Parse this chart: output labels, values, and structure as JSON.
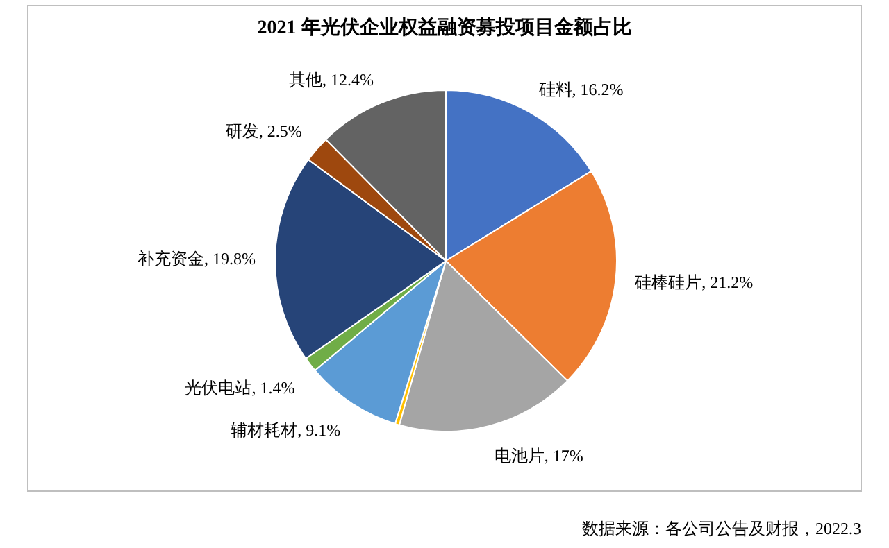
{
  "chart_data": {
    "type": "pie",
    "title": "2021 年光伏企业权益融资募投项目金额占比",
    "categories": [
      "硅料",
      "硅棒硅片",
      "电池片",
      null,
      "辅材耗材",
      "光伏电站",
      "补充资金",
      "研发",
      "其他"
    ],
    "values": [
      16.2,
      21.2,
      17,
      0.4,
      9.1,
      1.4,
      19.8,
      2.5,
      12.4
    ],
    "colors": [
      "#4472c4",
      "#ed7d31",
      "#a5a5a5",
      "#ffc000",
      "#5b9bd5",
      "#70ad47",
      "#264478",
      "#9e480e",
      "#636363"
    ],
    "value_labels": [
      ", 16.2%",
      ", 21.2%",
      ", 17%",
      null,
      ", 9.1%",
      ", 1.4%",
      ", 19.8%",
      ", 2.5%",
      ", 12.4%"
    ],
    "annotations": [
      "数据来源：各公司公告及财报，2022.3"
    ]
  }
}
